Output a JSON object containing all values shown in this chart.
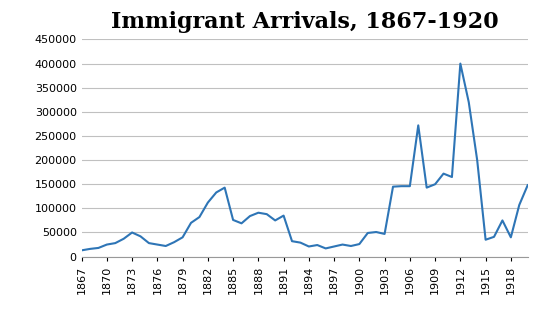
{
  "title": "Immigrant Arrivals, 1867-1920",
  "title_fontsize": 16,
  "line_color": "#2E75B6",
  "background_color": "#FFFFFF",
  "years": [
    1867,
    1868,
    1869,
    1870,
    1871,
    1872,
    1873,
    1874,
    1875,
    1876,
    1877,
    1878,
    1879,
    1880,
    1881,
    1882,
    1883,
    1884,
    1885,
    1886,
    1887,
    1888,
    1889,
    1890,
    1891,
    1892,
    1893,
    1894,
    1895,
    1896,
    1897,
    1898,
    1899,
    1900,
    1901,
    1902,
    1903,
    1904,
    1905,
    1906,
    1907,
    1908,
    1909,
    1910,
    1911,
    1912,
    1913,
    1914,
    1915,
    1916,
    1917,
    1918,
    1919,
    1920
  ],
  "values": [
    13000,
    16000,
    18000,
    25000,
    28000,
    37000,
    50000,
    42000,
    28000,
    25000,
    22000,
    30000,
    40000,
    70000,
    82000,
    112000,
    133000,
    143000,
    76000,
    69000,
    84000,
    91000,
    88000,
    75000,
    85000,
    32000,
    29000,
    21000,
    24000,
    17000,
    21000,
    25000,
    22000,
    26000,
    49000,
    51000,
    47000,
    145000,
    146000,
    146000,
    272000,
    143000,
    150000,
    172000,
    165000,
    400000,
    320000,
    200000,
    35000,
    41000,
    75000,
    40000,
    107000,
    148000
  ],
  "xtick_years": [
    1867,
    1870,
    1873,
    1876,
    1879,
    1882,
    1885,
    1888,
    1891,
    1894,
    1897,
    1900,
    1903,
    1906,
    1909,
    1912,
    1915,
    1918
  ],
  "ylim": [
    0,
    450000
  ],
  "ytick_values": [
    0,
    50000,
    100000,
    150000,
    200000,
    250000,
    300000,
    350000,
    400000,
    450000
  ],
  "line_width": 1.5,
  "grid_color": "#C0C0C0",
  "grid_alpha": 1.0,
  "tick_label_fontsize": 8,
  "title_font_family": "serif"
}
